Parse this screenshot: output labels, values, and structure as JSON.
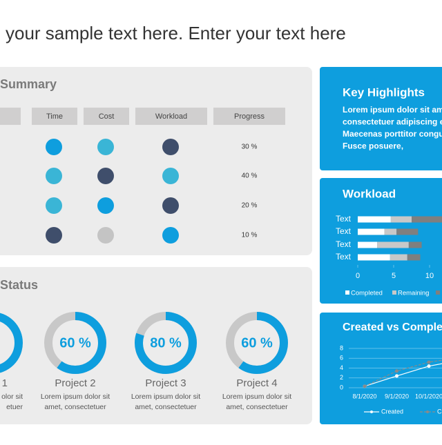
{
  "title": "your sample text here. Enter your text here",
  "summary": {
    "title": "Summary",
    "headers": [
      "Time",
      "Cost",
      "Workload",
      "Progress"
    ],
    "rows": [
      {
        "dots": [
          "#0e9ede",
          "#3ab5d6",
          "#3f4e6b"
        ],
        "progress": "30 %"
      },
      {
        "dots": [
          "#3ab5d6",
          "#3f4e6b",
          "#3ab5d6"
        ],
        "progress": "40 %"
      },
      {
        "dots": [
          "#3ab5d6",
          "#0e9ede",
          "#3f4e6b"
        ],
        "progress": "20 %"
      },
      {
        "dots": [
          "#3f4e6b",
          "#c4c4c4",
          "#0e9ede"
        ],
        "progress": "10 %"
      }
    ]
  },
  "status": {
    "title": "Status",
    "color": "#0e9ede",
    "track": "#c8c8c8",
    "projects": [
      {
        "name": "1",
        "value": null,
        "desc": [
          "olor sit",
          "etuer"
        ]
      },
      {
        "name": "Project 2",
        "value": 60,
        "value_label": "60 %",
        "desc": [
          "Lorem  ipsum dolor sit",
          "amet, consectetuer"
        ]
      },
      {
        "name": "Project 3",
        "value": 80,
        "value_label": "80 %",
        "desc": [
          "Lorem  ipsum dolor sit",
          "amet, consectetuer"
        ]
      },
      {
        "name": "Project 4",
        "value": 60,
        "value_label": "60 %",
        "desc": [
          "Lorem  ipsum dolor sit",
          "amet, consectetuer"
        ]
      }
    ]
  },
  "highlights": {
    "title": "Key Highlights",
    "lines": [
      "Lorem ipsum dolor sit am",
      "consectetuer adipiscing e",
      "Maecenas porttitor congu",
      "Fusce posuere,"
    ]
  },
  "chart_data": [
    {
      "type": "bar",
      "orientation": "horizontal",
      "stacked": true,
      "title": "Workload",
      "categories": [
        "Text",
        "Text",
        "Text",
        "Text"
      ],
      "series": [
        {
          "name": "Completed",
          "color": "#ffffff",
          "values": [
            4.6,
            3.7,
            2.7,
            4.5
          ]
        },
        {
          "name": "Remaining",
          "color": "#c8c8c8",
          "values": [
            2.9,
            1.7,
            4.4,
            2.4
          ]
        },
        {
          "name": null,
          "color": "#7f7f7f",
          "values": [
            5,
            3.0,
            1.8,
            1.8
          ]
        }
      ],
      "xlim": [
        0,
        15
      ],
      "xticks": [
        0,
        5,
        10
      ]
    },
    {
      "type": "line",
      "title": "Created vs Comple",
      "categories": [
        "8/1/2020",
        "9/1/2020",
        "10/1/2020",
        null
      ],
      "series": [
        {
          "name": "Created",
          "color": "#ffffff",
          "values": [
            0.3,
            2.4,
            4.4,
            5.6
          ]
        },
        {
          "name": "Com",
          "color": "#8a8a8a",
          "dashed": true,
          "values": [
            0.3,
            3.4,
            5.2,
            6.2
          ]
        }
      ],
      "ylim": [
        0,
        8
      ],
      "yticks": [
        0,
        2,
        4,
        6,
        8
      ],
      "grid": true
    }
  ]
}
